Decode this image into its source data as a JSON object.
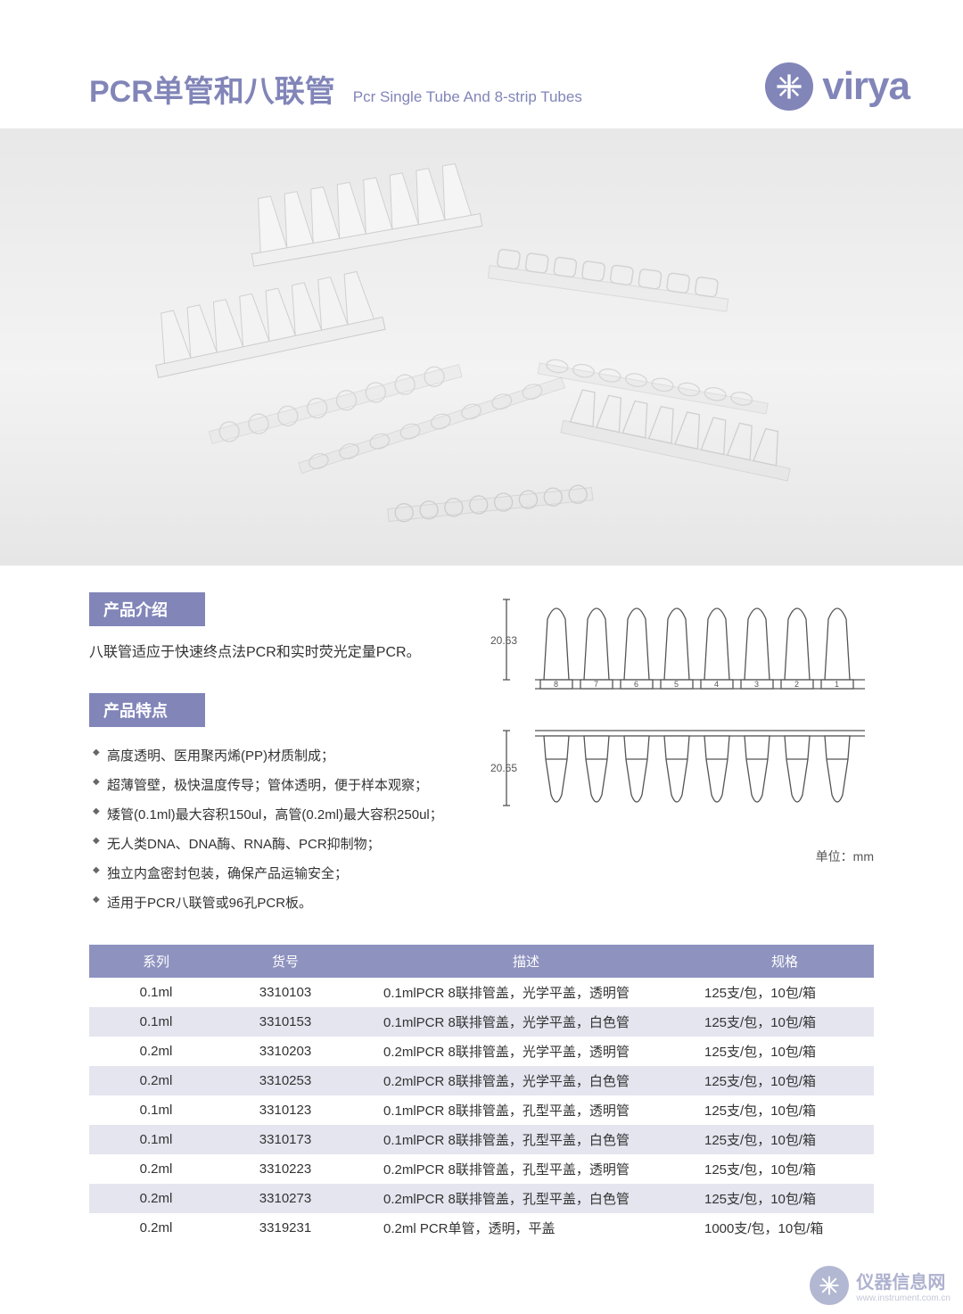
{
  "colors": {
    "brand": "#8185b8",
    "table_header": "#8e92bf",
    "table_stripe_even": "#e4e5ef",
    "table_stripe_odd": "#ffffff",
    "hero_bg_top": "#e8e8e8",
    "hero_bg_bottom": "#e6e6e6",
    "text": "#333333",
    "diagram_line": "#555555"
  },
  "header": {
    "title_cn": "PCR单管和八联管",
    "title_en": "Pcr Single Tube And 8-strip Tubes",
    "brand_name": "virya"
  },
  "sections": {
    "intro_label": "产品介绍",
    "features_label": "产品特点"
  },
  "intro_text": "八联管适应于快速终点法PCR和实时荧光定量PCR。",
  "features": [
    "高度透明、医用聚丙烯(PP)材质制成；",
    "超薄管壁，极快温度传导；管体透明，便于样本观察；",
    "矮管(0.1ml)最大容积150ul，高管(0.2ml)最大容积250ul；",
    "无人类DNA、DNA酶、RNA酶、PCR抑制物；",
    "独立内盒密封包装，确保产品运输安全；",
    "适用于PCR八联管或96孔PCR板。"
  ],
  "diagram": {
    "dim1": "20.63",
    "dim2": "20.65",
    "tube_numbers": [
      "8",
      "7",
      "6",
      "5",
      "4",
      "3",
      "2",
      "1"
    ],
    "unit_label": "单位：mm"
  },
  "table": {
    "columns": [
      "系列",
      "货号",
      "描述",
      "规格"
    ],
    "rows": [
      [
        "0.1ml",
        "3310103",
        "0.1mlPCR 8联排管盖，光学平盖，透明管",
        "125支/包，10包/箱"
      ],
      [
        "0.1ml",
        "3310153",
        "0.1mlPCR 8联排管盖，光学平盖，白色管",
        "125支/包，10包/箱"
      ],
      [
        "0.2ml",
        "3310203",
        "0.2mlPCR 8联排管盖，光学平盖，透明管",
        "125支/包，10包/箱"
      ],
      [
        "0.2ml",
        "3310253",
        "0.2mlPCR 8联排管盖，光学平盖，白色管",
        "125支/包，10包/箱"
      ],
      [
        "0.1ml",
        "3310123",
        "0.1mlPCR 8联排管盖，孔型平盖，透明管",
        "125支/包，10包/箱"
      ],
      [
        "0.1ml",
        "3310173",
        "0.1mlPCR 8联排管盖，孔型平盖，白色管",
        "125支/包，10包/箱"
      ],
      [
        "0.2ml",
        "3310223",
        "0.2mlPCR 8联排管盖，孔型平盖，透明管",
        "125支/包，10包/箱"
      ],
      [
        "0.2ml",
        "3310273",
        "0.2mlPCR 8联排管盖，孔型平盖，白色管",
        "125支/包，10包/箱"
      ],
      [
        "0.2ml",
        "3319231",
        "0.2ml PCR单管，透明，平盖",
        "1000支/包，10包/箱"
      ]
    ]
  },
  "watermark": {
    "text": "仪器信息网",
    "sub": "www.instrument.com.cn"
  }
}
